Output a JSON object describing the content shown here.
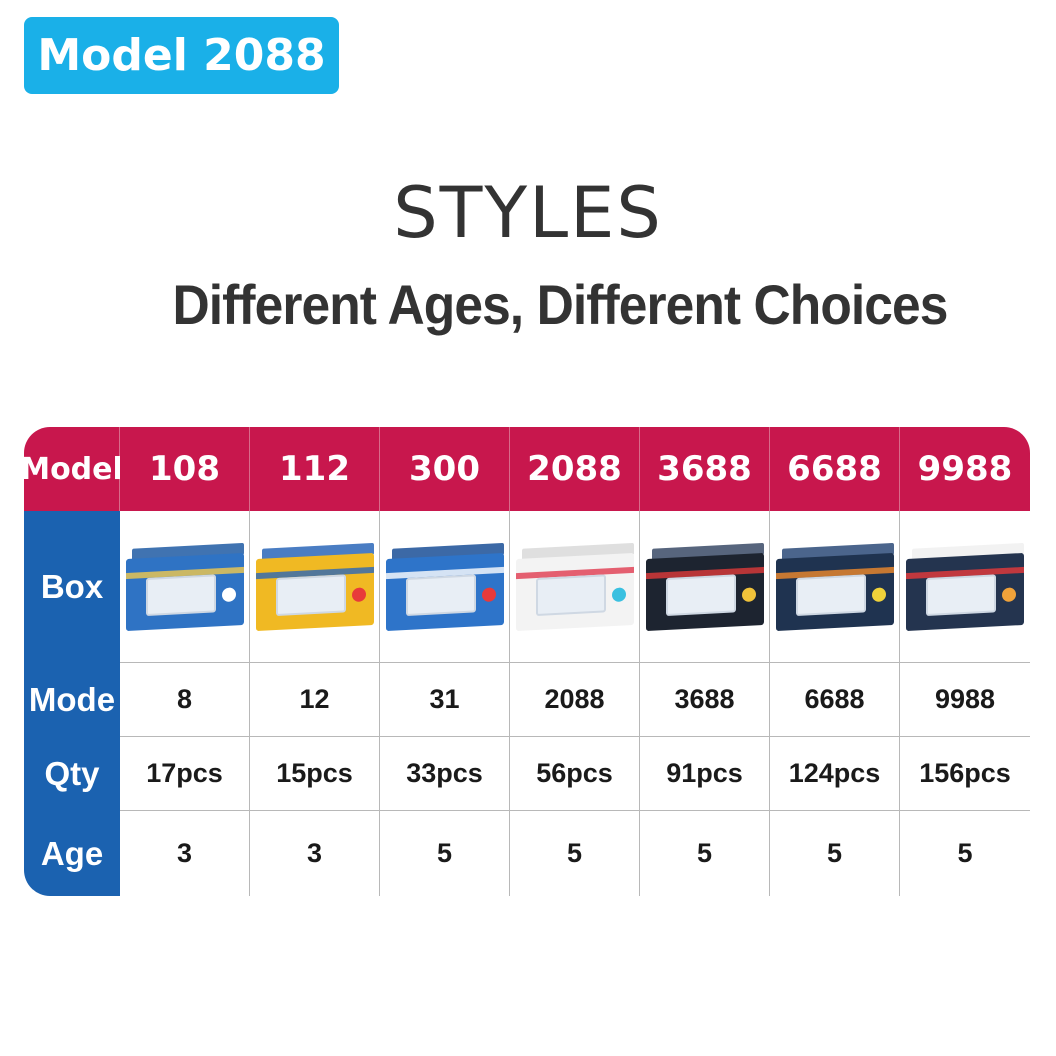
{
  "badge": "Model 2088",
  "title": "STYLES",
  "subtitle": "Different Ages, Different Choices",
  "table": {
    "header_label": "Model",
    "models": [
      "108",
      "112",
      "300",
      "2088",
      "3688",
      "6688",
      "9988"
    ],
    "row_labels": {
      "box": "Box",
      "mode": "Mode",
      "qty": "Qty",
      "age": "Age"
    },
    "mode": [
      "8",
      "12",
      "31",
      "2088",
      "3688",
      "6688",
      "9988"
    ],
    "qty": [
      "17pcs",
      "15pcs",
      "33pcs",
      "56pcs",
      "91pcs",
      "124pcs",
      "156pcs"
    ],
    "age": [
      "3",
      "3",
      "5",
      "5",
      "5",
      "5",
      "5"
    ],
    "box_colors": [
      {
        "front": "#2f73c4",
        "top": "#1e5aa3",
        "stripe": "#f2c94c",
        "accent": "#ffffff"
      },
      {
        "front": "#f0b923",
        "top": "#2a66b8",
        "stripe": "#2a66b8",
        "accent": "#e83a3a"
      },
      {
        "front": "#2e74c9",
        "top": "#1a4f96",
        "stripe": "#ffffff",
        "accent": "#e83a3a"
      },
      {
        "front": "#f3f3f3",
        "top": "#d9d9d9",
        "stripe": "#e03a4f",
        "accent": "#3ac0e0"
      },
      {
        "front": "#1d2430",
        "top": "#3a4a66",
        "stripe": "#e03a3a",
        "accent": "#f0c23a"
      },
      {
        "front": "#1f3350",
        "top": "#2b4a78",
        "stripe": "#f08a2a",
        "accent": "#f0d23a"
      },
      {
        "front": "#24344f",
        "top": "#f0f0f0",
        "stripe": "#e83a3a",
        "accent": "#f0a23a"
      }
    ],
    "colors": {
      "header": "#c8174d",
      "row_label": "#1b62b0",
      "badge": "#1ab0e8"
    }
  }
}
